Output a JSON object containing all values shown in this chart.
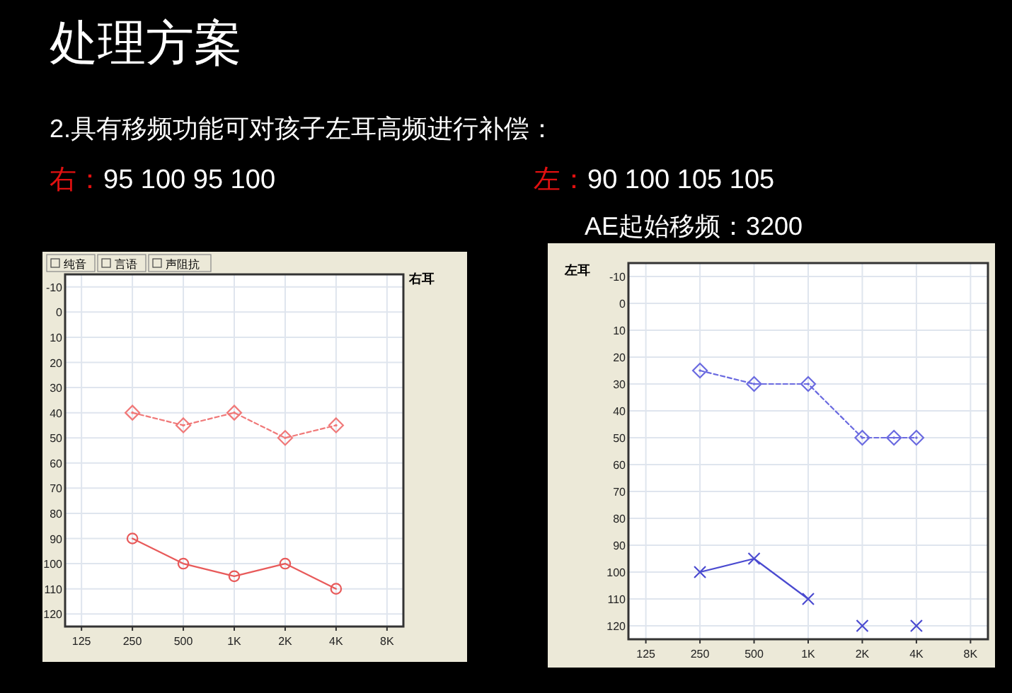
{
  "chart_data": [
    {
      "type": "other",
      "title": "处理方案",
      "annotations": [
        "2.具有移频功能可对孩子左耳高频进行补偿：",
        "右：95 100 95 100",
        "左：90 100 105 105",
        "AE起始移频：3200"
      ]
    },
    {
      "type": "line",
      "title": "右耳",
      "annotations": [
        "纯音",
        "言语",
        "声阻抗"
      ],
      "log": "x",
      "xlim": [
        100,
        10000
      ],
      "xticks": [
        125,
        250,
        500,
        {
          "value": 1000,
          "label": "1K"
        },
        {
          "value": 2000,
          "label": "2K"
        },
        {
          "value": 4000,
          "label": "4K"
        },
        {
          "value": 8000,
          "label": "8K"
        }
      ],
      "ylim": [
        125,
        -15
      ],
      "yticks": [
        -10,
        0,
        10,
        20,
        30,
        40,
        50,
        60,
        70,
        80,
        90,
        100,
        110,
        120
      ],
      "grid": true,
      "series": [
        {
          "type": "line",
          "color": "#f07878",
          "marker": "diamond",
          "line_style": "dashed",
          "x": [
            250,
            500,
            1000,
            2000,
            4000
          ],
          "values": [
            40,
            45,
            40,
            50,
            45
          ]
        },
        {
          "type": "line",
          "color": "#e85a5a",
          "marker": "circle",
          "line_style": "solid",
          "x": [
            250,
            500,
            1000,
            2000,
            4000
          ],
          "values": [
            90,
            100,
            105,
            100,
            110
          ]
        }
      ]
    },
    {
      "type": "line",
      "title": "左耳",
      "log": "x",
      "xlim": [
        100,
        10000
      ],
      "xticks": [
        125,
        250,
        500,
        {
          "value": 1000,
          "label": "1K"
        },
        {
          "value": 2000,
          "label": "2K"
        },
        {
          "value": 4000,
          "label": "4K"
        },
        {
          "value": 8000,
          "label": "8K"
        }
      ],
      "ylim": [
        125,
        -15
      ],
      "yticks": [
        -10,
        0,
        10,
        20,
        30,
        40,
        50,
        60,
        70,
        80,
        90,
        100,
        110,
        120
      ],
      "grid": true,
      "series": [
        {
          "type": "line",
          "color": "#6a6ae0",
          "marker": "diamond",
          "line_style": "dashed",
          "x": [
            250,
            500,
            1000,
            2000,
            3000,
            4000
          ],
          "values": [
            25,
            30,
            30,
            50,
            50,
            50
          ]
        },
        {
          "type": "line",
          "color": "#4a4ad0",
          "marker": "cross",
          "line_style": "solid",
          "x": [
            250,
            500,
            1000
          ],
          "values": [
            100,
            95,
            110
          ]
        },
        {
          "type": "scatter",
          "color": "#4a4ad0",
          "marker": "cross",
          "x": [
            2000,
            4000
          ],
          "values": [
            120,
            120
          ]
        }
      ]
    }
  ]
}
